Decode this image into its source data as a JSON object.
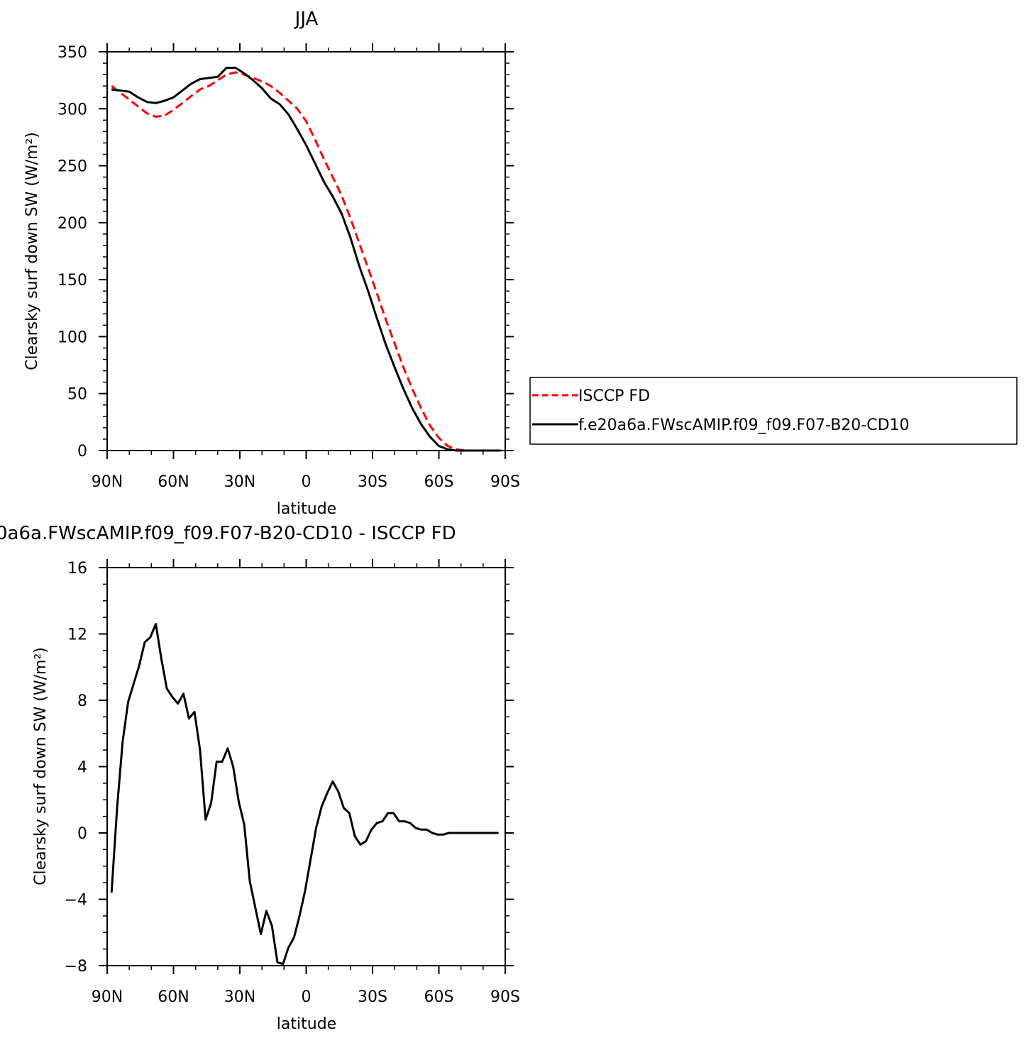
{
  "chart_data": [
    {
      "type": "line",
      "title": "JJA",
      "xlabel": "latitude",
      "ylabel": "Clearsky surf down SW (W/m²)",
      "xlim": [
        90,
        -90
      ],
      "ylim": [
        0,
        350
      ],
      "xticks": [
        90,
        60,
        30,
        0,
        -30,
        -60,
        -90
      ],
      "xtick_labels": [
        "90N",
        "60N",
        "30N",
        "0",
        "30S",
        "60S",
        "90S"
      ],
      "yticks": [
        0,
        50,
        100,
        150,
        200,
        250,
        300,
        350
      ],
      "ytick_labels": [
        "0",
        "50",
        "100",
        "150",
        "200",
        "250",
        "300",
        "350"
      ],
      "legend": "right-outside",
      "series": [
        {
          "name": "ISCCP FD",
          "color": "#ff0000",
          "dash": "dashed",
          "x": [
            88,
            84,
            80,
            76,
            72,
            68,
            64,
            60,
            56,
            52,
            48,
            44,
            40,
            36,
            32,
            28,
            24,
            20,
            16,
            12,
            8,
            4,
            0,
            -4,
            -8,
            -12,
            -16,
            -20,
            -24,
            -28,
            -32,
            -36,
            -40,
            -44,
            -48,
            -52,
            -56,
            -60,
            -64,
            -68,
            -72,
            -76,
            -80,
            -84,
            -88
          ],
          "values": [
            320,
            314,
            308,
            302,
            296,
            293,
            294,
            299,
            305,
            311,
            317,
            320,
            325,
            330,
            332,
            330,
            327,
            324,
            320,
            314,
            307,
            300,
            289,
            273,
            256,
            240,
            224,
            204,
            182,
            160,
            138,
            115,
            94,
            73,
            54,
            37,
            22,
            11,
            4,
            1,
            0,
            0,
            0,
            0,
            0
          ]
        },
        {
          "name": "f.e20a6a.FWscAMIP.f09_f09.F07-B20-CD10",
          "color": "#000000",
          "dash": "solid",
          "x": [
            88,
            84,
            80,
            76,
            72,
            68,
            64,
            60,
            56,
            52,
            48,
            44,
            40,
            36,
            32,
            28,
            24,
            20,
            16,
            12,
            8,
            4,
            0,
            -4,
            -8,
            -12,
            -16,
            -20,
            -24,
            -28,
            -32,
            -36,
            -40,
            -44,
            -48,
            -52,
            -56,
            -60,
            -64,
            -68,
            -72,
            -76,
            -80,
            -84,
            -88
          ],
          "values": [
            317,
            316,
            315,
            310,
            306,
            305,
            307,
            310,
            316,
            322,
            326,
            327,
            328,
            336,
            336,
            331,
            325,
            318,
            309,
            304,
            295,
            282,
            268,
            252,
            236,
            223,
            208,
            187,
            162,
            140,
            116,
            93,
            73,
            54,
            37,
            23,
            12,
            4,
            1,
            0,
            0,
            0,
            0,
            0,
            0
          ]
        }
      ]
    },
    {
      "type": "line",
      "title": "0a6a.FWscAMIP.f09_f09.F07-B20-CD10 - ISCCP FD",
      "xlabel": "latitude",
      "ylabel": "Clearsky surf down SW (W/m²)",
      "xlim": [
        90,
        -90
      ],
      "ylim": [
        -8,
        16
      ],
      "xticks": [
        90,
        60,
        30,
        0,
        -30,
        -60,
        -90
      ],
      "xtick_labels": [
        "90N",
        "60N",
        "30N",
        "0",
        "30S",
        "60S",
        "90S"
      ],
      "yticks": [
        -8,
        -4,
        0,
        4,
        8,
        12,
        16
      ],
      "ytick_labels": [
        "−8",
        "−4",
        "0",
        "4",
        "8",
        "12",
        "16"
      ],
      "series": [
        {
          "color": "#000000",
          "dash": "solid",
          "x": [
            88,
            85.5,
            83,
            80.5,
            78,
            75.5,
            73,
            70.5,
            68,
            65.5,
            63,
            60.5,
            58,
            55.5,
            53,
            50.5,
            48,
            45.5,
            43,
            40.5,
            38,
            35.5,
            33,
            30.5,
            28,
            25.5,
            23,
            20.5,
            18,
            15.5,
            13,
            10.5,
            8,
            5.5,
            3,
            0.5,
            -2,
            -4.5,
            -7,
            -9.5,
            -12,
            -14.5,
            -17,
            -19.5,
            -22,
            -24.5,
            -27,
            -29.5,
            -32,
            -34.5,
            -37,
            -39.5,
            -42,
            -44.5,
            -47,
            -49.5,
            -52,
            -54.5,
            -57,
            -59.5,
            -62,
            -64.5,
            -67,
            -69.5,
            -72,
            -74.5,
            -77,
            -79.5,
            -82,
            -84.5,
            -87
          ],
          "values": [
            -3.6,
            1.5,
            5.5,
            7.9,
            9.0,
            10.1,
            11.5,
            11.8,
            12.6,
            10.5,
            8.7,
            8.2,
            7.8,
            8.4,
            6.9,
            7.3,
            5.0,
            0.8,
            1.8,
            4.3,
            4.3,
            5.1,
            4.0,
            1.9,
            0.5,
            -2.9,
            -4.5,
            -6.1,
            -4.7,
            -5.6,
            -7.8,
            -7.9,
            -6.9,
            -6.3,
            -5.0,
            -3.5,
            -1.6,
            0.3,
            1.6,
            2.4,
            3.1,
            2.5,
            1.5,
            1.2,
            -0.2,
            -0.7,
            -0.5,
            0.2,
            0.6,
            0.7,
            1.2,
            1.2,
            0.7,
            0.7,
            0.6,
            0.3,
            0.2,
            0.2,
            0.0,
            -0.1,
            -0.1,
            0.0,
            0.0,
            0.0,
            0.0,
            0.0,
            0.0,
            0.0,
            0.0,
            0.0,
            0.0
          ]
        }
      ]
    }
  ]
}
